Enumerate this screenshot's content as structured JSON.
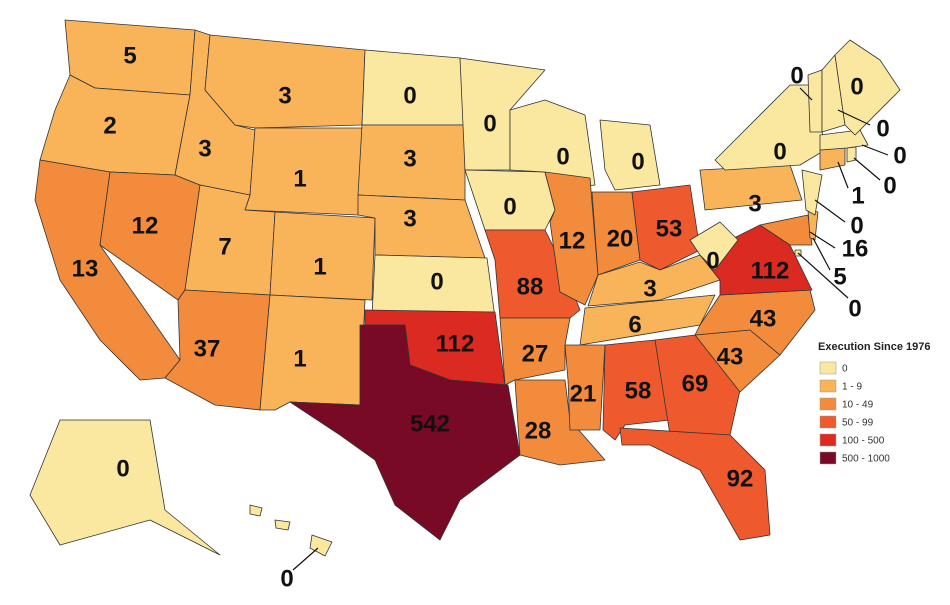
{
  "legend": {
    "title": "Execution Since 1976",
    "bins": [
      {
        "label": "0",
        "color": "#fbe8a0"
      },
      {
        "label": "1 - 9",
        "color": "#f9b45a"
      },
      {
        "label": "10 - 49",
        "color": "#f38b3c"
      },
      {
        "label": "50 - 99",
        "color": "#ee5a2d"
      },
      {
        "label": "100 - 500",
        "color": "#da2a22"
      },
      {
        "label": "500 - 1000",
        "color": "#780a25"
      }
    ]
  },
  "regions": [
    {
      "value": 5,
      "color": "#f9b45a"
    },
    {
      "value": 2,
      "color": "#f9b45a"
    },
    {
      "value": 13,
      "color": "#f38b3c"
    },
    {
      "value": 12,
      "color": "#f38b3c"
    },
    {
      "value": 3,
      "color": "#f9b45a"
    },
    {
      "value": 3,
      "color": "#f9b45a"
    },
    {
      "value": 1,
      "color": "#f9b45a"
    },
    {
      "value": 7,
      "color": "#f9b45a"
    },
    {
      "value": 1,
      "color": "#f9b45a"
    },
    {
      "value": 37,
      "color": "#f38b3c"
    },
    {
      "value": 1,
      "color": "#f9b45a"
    },
    {
      "value": 0,
      "color": "#fbe8a0"
    },
    {
      "value": 3,
      "color": "#f9b45a"
    },
    {
      "value": 3,
      "color": "#f9b45a"
    },
    {
      "value": 0,
      "color": "#fbe8a0"
    },
    {
      "value": 112,
      "color": "#da2a22"
    },
    {
      "value": 542,
      "color": "#780a25"
    },
    {
      "value": 0,
      "color": "#fbe8a0"
    },
    {
      "value": 0,
      "color": "#fbe8a0"
    },
    {
      "value": 88,
      "color": "#ee5a2d"
    },
    {
      "value": 27,
      "color": "#f38b3c"
    },
    {
      "value": 28,
      "color": "#f38b3c"
    },
    {
      "value": 0,
      "color": "#fbe8a0"
    },
    {
      "value": 12,
      "color": "#f38b3c"
    },
    {
      "value": 0,
      "color": "#fbe8a0"
    },
    {
      "value": 20,
      "color": "#f38b3c"
    },
    {
      "value": 53,
      "color": "#ee5a2d"
    },
    {
      "value": 3,
      "color": "#f9b45a"
    },
    {
      "value": 6,
      "color": "#f9b45a"
    },
    {
      "value": 21,
      "color": "#f38b3c"
    },
    {
      "value": 58,
      "color": "#ee5a2d"
    },
    {
      "value": 69,
      "color": "#ee5a2d"
    },
    {
      "value": 92,
      "color": "#ee5a2d"
    },
    {
      "value": 43,
      "color": "#f38b3c"
    },
    {
      "value": 43,
      "color": "#f38b3c"
    },
    {
      "value": 112,
      "color": "#da2a22"
    },
    {
      "value": 0,
      "color": "#fbe8a0"
    },
    {
      "value": 3,
      "color": "#f9b45a"
    },
    {
      "value": 0,
      "color": "#fbe8a0"
    },
    {
      "value": 16,
      "color": "#f38b3c"
    },
    {
      "value": 5,
      "color": "#f9b45a"
    },
    {
      "value": 0,
      "color": "#fbe8a0"
    },
    {
      "value": 0,
      "color": "#fbe8a0"
    },
    {
      "value": 1,
      "color": "#f9b45a"
    },
    {
      "value": 0,
      "color": "#fbe8a0"
    },
    {
      "value": 0,
      "color": "#fbe8a0"
    },
    {
      "value": 0,
      "color": "#fbe8a0"
    },
    {
      "value": 0,
      "color": "#fbe8a0"
    },
    {
      "value": 0,
      "color": "#fbe8a0"
    },
    {
      "value": 0,
      "color": "#fbe8a0"
    },
    {
      "value": 0,
      "color": "#fbe8a0"
    }
  ]
}
